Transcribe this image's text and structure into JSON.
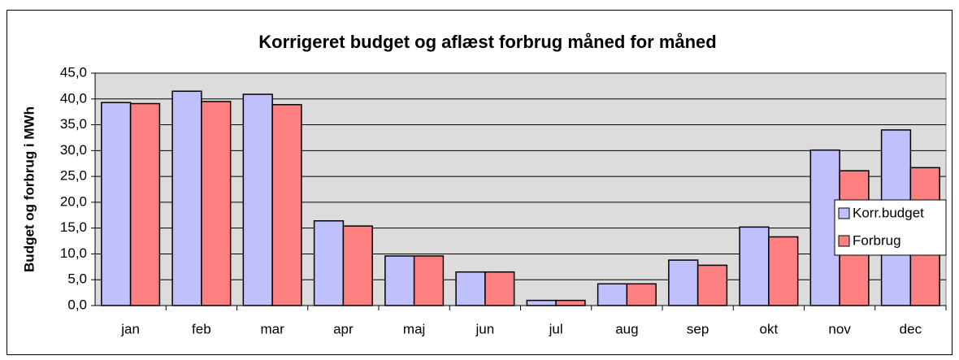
{
  "chart_data": {
    "type": "bar",
    "title": "Korrigeret budget og aflæst forbrug måned for måned",
    "y_label": "Budget og forbrug i MWh",
    "categories": [
      "jan",
      "feb",
      "mar",
      "apr",
      "maj",
      "jun",
      "jul",
      "aug",
      "sep",
      "okt",
      "nov",
      "dec"
    ],
    "series": [
      {
        "name": "Korr.budget",
        "color": "#c0c0ff",
        "values": [
          39.3,
          41.5,
          40.9,
          16.4,
          9.6,
          6.5,
          1.0,
          4.2,
          8.8,
          15.2,
          30.1,
          34.0
        ]
      },
      {
        "name": "Forbrug",
        "color": "#ff8080",
        "values": [
          39.1,
          39.5,
          38.9,
          15.4,
          9.6,
          6.5,
          1.0,
          4.2,
          7.8,
          13.3,
          26.1,
          26.7
        ]
      }
    ],
    "ylim": [
      0,
      45
    ],
    "yticks": [
      {
        "value": 0,
        "label": "0,0"
      },
      {
        "value": 5,
        "label": "5,0"
      },
      {
        "value": 10,
        "label": "10,0"
      },
      {
        "value": 15,
        "label": "15,0"
      },
      {
        "value": 20,
        "label": "20,0"
      },
      {
        "value": 25,
        "label": "25,0"
      },
      {
        "value": 30,
        "label": "30,0"
      },
      {
        "value": 35,
        "label": "35,0"
      },
      {
        "value": 40,
        "label": "40,0"
      },
      {
        "value": 45,
        "label": "45,0"
      }
    ],
    "grid": true,
    "legend": "right",
    "plot_background": "#dcdcdc"
  }
}
